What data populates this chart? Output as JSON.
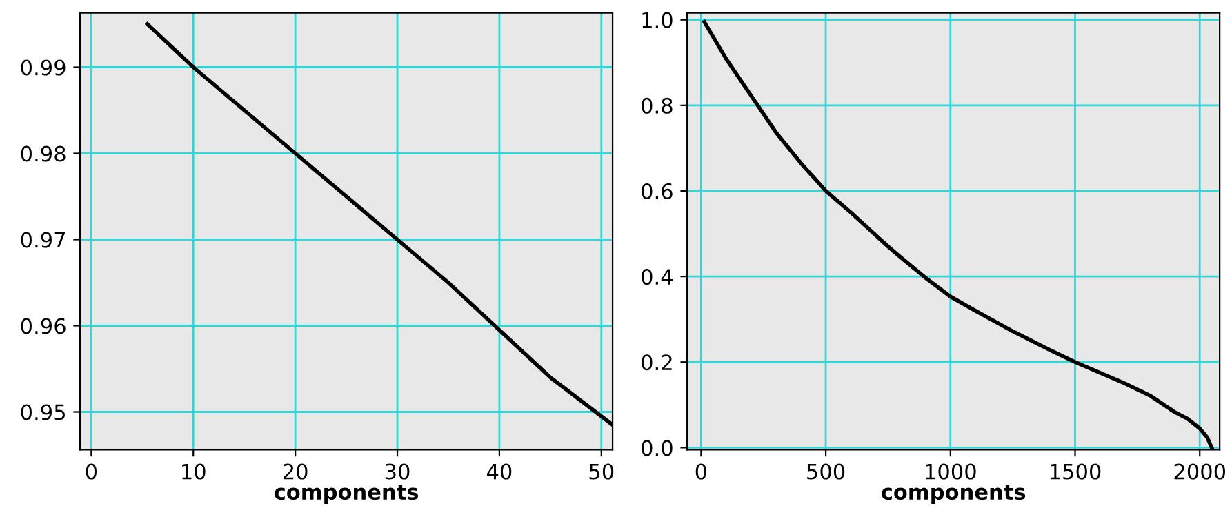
{
  "chart_data": [
    {
      "type": "line",
      "xlabel": "components",
      "xlim": [
        -1.1,
        51.1
      ],
      "ylim": [
        0.9456,
        0.9963
      ],
      "xticks": [
        0,
        10,
        20,
        30,
        40,
        50
      ],
      "yticks": [
        0.95,
        0.96,
        0.97,
        0.98,
        0.99
      ],
      "grid": true,
      "legend": false,
      "series": [
        {
          "color": "#000000",
          "x": [
            5.5,
            10,
            15,
            20,
            25,
            30,
            35,
            40,
            45,
            51.1
          ],
          "values": [
            0.995,
            0.99,
            0.985,
            0.98,
            0.975,
            0.97,
            0.965,
            0.9595,
            0.954,
            0.9485
          ]
        }
      ]
    },
    {
      "type": "line",
      "xlabel": "components",
      "xlim": [
        -56,
        2080
      ],
      "ylim": [
        -0.005,
        1.016
      ],
      "xticks": [
        0,
        500,
        1000,
        1500,
        2000
      ],
      "yticks": [
        {
          "value": 0,
          "label": "0.0"
        },
        0.2,
        0.4,
        0.6,
        0.8,
        {
          "value": 1,
          "label": "1.0"
        }
      ],
      "grid": true,
      "legend": false,
      "series": [
        {
          "color": "#000000",
          "x": [
            13,
            100,
            200,
            300,
            400,
            500,
            600,
            750,
            800,
            900,
            1000,
            1100,
            1200,
            1250,
            1400,
            1500,
            1600,
            1700,
            1750,
            1800,
            1900,
            1950,
            2000,
            2030,
            2048
          ],
          "values": [
            0.995,
            0.909,
            0.823,
            0.737,
            0.665,
            0.6,
            0.55,
            0.47,
            0.445,
            0.397,
            0.353,
            0.32,
            0.288,
            0.272,
            0.228,
            0.2,
            0.175,
            0.15,
            0.136,
            0.122,
            0.083,
            0.068,
            0.045,
            0.024,
            0.0
          ]
        }
      ]
    }
  ]
}
